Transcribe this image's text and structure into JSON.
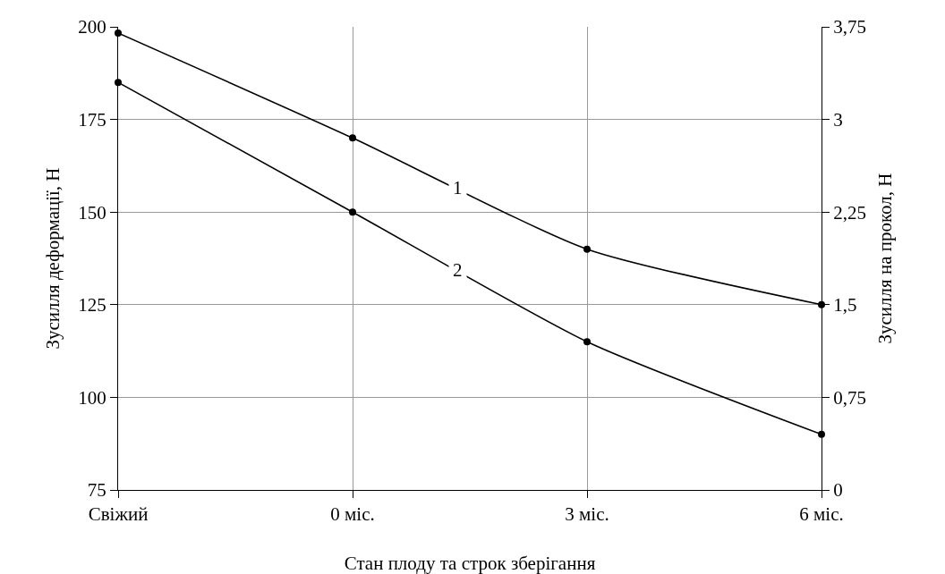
{
  "chart_data": {
    "type": "line",
    "xlabel": "Стан плоду та строк зберігання",
    "ylabel": "Зусилля деформації, Н",
    "y2label": "Зусилля на прокол, Н",
    "categories": [
      "Свіжий",
      "0 міс.",
      "3 міс.",
      "6 міс."
    ],
    "series": [
      {
        "name": "1",
        "color": "#000000",
        "axis": "y2",
        "values": [
          3.7,
          2.85,
          1.95,
          1.5
        ]
      },
      {
        "name": "2",
        "color": "#000000",
        "values": [
          185,
          150,
          115,
          90
        ]
      }
    ],
    "ylim": [
      75,
      200
    ],
    "yticks": [
      75,
      100,
      125,
      150,
      175,
      200
    ],
    "y2lim": [
      0,
      3.75
    ],
    "y2ticks": [
      0,
      {
        "value": 0.75,
        "label": "0,75"
      },
      {
        "value": 1.5,
        "label": "1,5"
      },
      {
        "value": 2.25,
        "label": "2,25"
      },
      3,
      {
        "value": 3.75,
        "label": "3,75"
      }
    ],
    "grid": true,
    "marker": "circle",
    "line_style": "solid",
    "legend": false
  }
}
